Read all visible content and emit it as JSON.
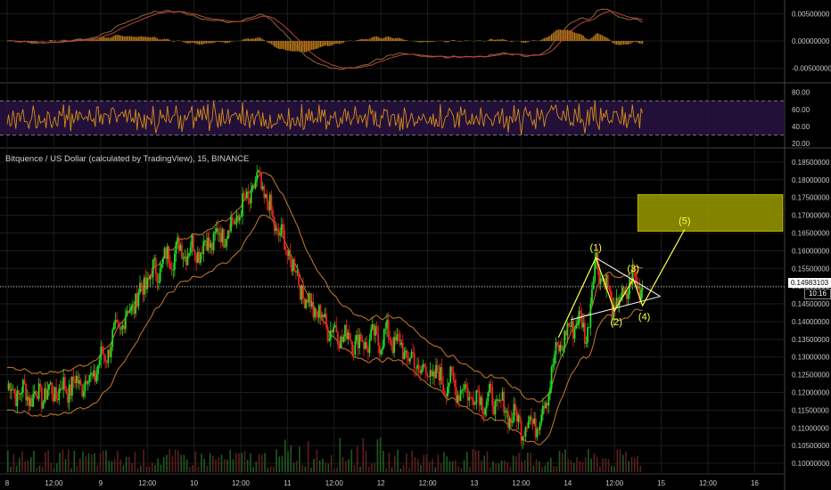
{
  "chart_title": "Bitquence / US Dollar (calculated by TradingView), 15, BINANCE",
  "current_price_label": "0.14983103",
  "countdown_label": "10:16",
  "colors": {
    "up": "#22dd22",
    "down": "#ee2222",
    "band": "#c87a2a",
    "wave": "#ffff44",
    "triangle": "#ffffff",
    "target_box": "#9a9a00",
    "rsi_band": "#2a1446",
    "macd_hist": "#d48a1a"
  },
  "chart_data": [
    {
      "type": "line",
      "panel": "MACD",
      "y_ticks": [
        "0.00500000",
        "0.00000000",
        "-0.00500000"
      ],
      "ylim": [
        -0.0075,
        0.0075
      ]
    },
    {
      "type": "line",
      "panel": "RSI",
      "y_ticks": [
        "80.00",
        "60.00",
        "40.00",
        "20.00"
      ],
      "ylim": [
        15,
        90
      ],
      "band": [
        30,
        70
      ]
    },
    {
      "type": "candlestick",
      "panel": "price",
      "y_ticks": [
        "0.18500000",
        "0.18000000",
        "0.17500000",
        "0.17000000",
        "0.16500000",
        "0.16000000",
        "0.15500000",
        "0.15000000",
        "0.14500000",
        "0.14000000",
        "0.13500000",
        "0.13000000",
        "0.12500000",
        "0.12000000",
        "0.11500000",
        "0.11000000",
        "0.10500000",
        "0.10000000"
      ],
      "ylim": [
        0.0975,
        0.1875
      ],
      "x_ticks": [
        "8",
        "12:00",
        "9",
        "12:00",
        "10",
        "12:00",
        "11",
        "12:00",
        "12",
        "12:00",
        "13",
        "12:00",
        "14",
        "12:00",
        "15",
        "12:00",
        "16"
      ],
      "price_path": [
        [
          0,
          0.121
        ],
        [
          0.3,
          0.119
        ],
        [
          0.6,
          0.121
        ],
        [
          0.9,
          0.124
        ],
        [
          1.2,
          0.138
        ],
        [
          1.5,
          0.152
        ],
        [
          1.8,
          0.16
        ],
        [
          2.1,
          0.161
        ],
        [
          2.4,
          0.167
        ],
        [
          2.7,
          0.18
        ],
        [
          2.85,
          0.168
        ],
        [
          3.0,
          0.16
        ],
        [
          3.2,
          0.146
        ],
        [
          3.5,
          0.137
        ],
        [
          3.8,
          0.134
        ],
        [
          4.1,
          0.136
        ],
        [
          4.4,
          0.127
        ],
        [
          4.7,
          0.123
        ],
        [
          5.0,
          0.119
        ],
        [
          5.25,
          0.117
        ],
        [
          5.5,
          0.111
        ],
        [
          5.7,
          0.112
        ],
        [
          5.9,
          0.133
        ],
        [
          6.1,
          0.141
        ],
        [
          6.2,
          0.136
        ],
        [
          6.3,
          0.158
        ],
        [
          6.5,
          0.143
        ],
        [
          6.7,
          0.152
        ],
        [
          6.8,
          0.15
        ]
      ],
      "waves": [
        {
          "label": "(1)",
          "t": 6.3,
          "price": 0.158
        },
        {
          "label": "(2)",
          "t": 6.5,
          "price": 0.143
        },
        {
          "label": "(3)",
          "t": 6.7,
          "price": 0.152
        },
        {
          "label": "(4)",
          "t": 6.8,
          "price": 0.1445
        },
        {
          "label": "(5)",
          "t": 7.25,
          "price": 0.166
        }
      ],
      "target_zone": {
        "t_from": 6.75,
        "t_to": 8.3,
        "price_from": 0.1655,
        "price_to": 0.1758
      }
    }
  ]
}
